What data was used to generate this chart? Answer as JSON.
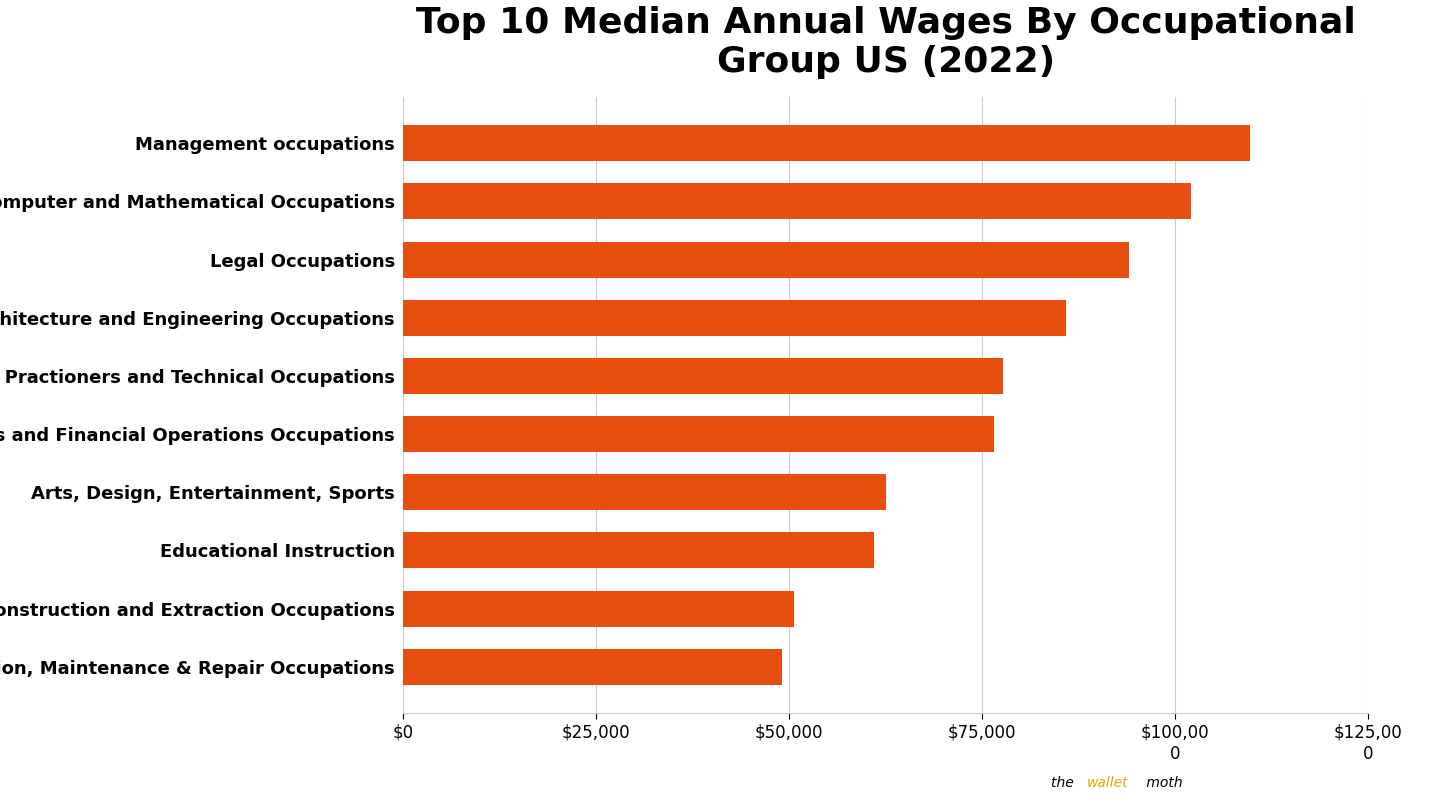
{
  "title": "Top 10 Median Annual Wages By Occupational\nGroup US (2022)",
  "categories": [
    "Installation, Maintenance & Repair Occupations",
    "Construction and Extraction Occupations",
    "Educational Instruction",
    "Arts, Design, Entertainment, Sports",
    "Business and Financial Operations Occupations",
    "Healthcare Practioners and Technical Occupations",
    "Architecture and Engineering Occupations",
    "Legal Occupations",
    "Computer and Mathematical Occupations",
    "Management occupations"
  ],
  "values": [
    49100,
    50600,
    61020,
    62500,
    76570,
    77760,
    85880,
    94000,
    102100,
    109760
  ],
  "bar_color": "#E84E0F",
  "background_color": "#FFFFFF",
  "xlim": [
    0,
    125000
  ],
  "xticks": [
    0,
    25000,
    50000,
    75000,
    100000,
    125000
  ],
  "title_fontsize": 26,
  "tick_fontsize": 12,
  "label_fontsize": 13,
  "watermark_color_wallet": "#D4B000"
}
